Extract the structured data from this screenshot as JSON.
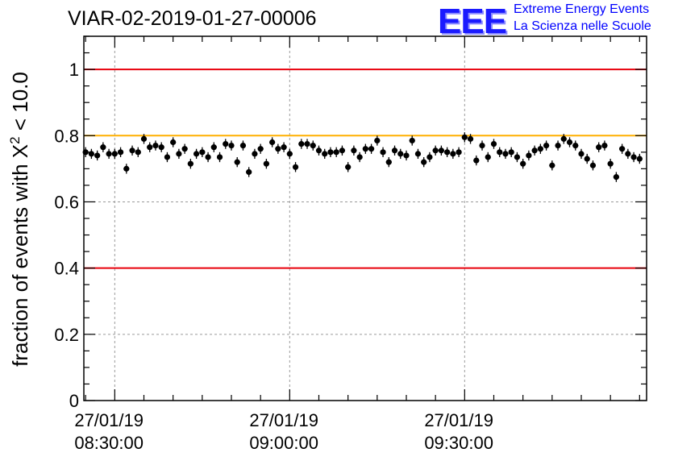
{
  "header": {
    "title": "VIAR-02-2019-01-27-00006",
    "logo_text": "EEE",
    "logo_line1": "Extreme Energy Events",
    "logo_line2": "La Scienza nelle Scuole"
  },
  "colors": {
    "red_line": "#e8000b",
    "orange_line": "#ffb000",
    "marker": "#000000",
    "grid": "#9a9a9a",
    "logo_blue": "#1a1aff"
  },
  "chart_data": {
    "type": "scatter",
    "title": "VIAR-02-2019-01-27-00006",
    "xlabel": "",
    "ylabel_prefix": "fraction of events with ",
    "ylabel_symbol": "X",
    "ylabel_superscript": "2",
    "ylabel_suffix": " < 10.0",
    "ylim": [
      0,
      1.1
    ],
    "yticks": [
      0,
      0.2,
      0.4,
      0.6,
      0.8,
      1
    ],
    "ytick_labels": [
      "0",
      "0.2",
      "0.4",
      "0.6",
      "0.8",
      "1"
    ],
    "xlim_minutes": [
      -5.3,
      91.2
    ],
    "xticks_minutes": [
      0,
      30,
      60
    ],
    "xtick_labels": [
      {
        "date": "27/01/19",
        "time": "08:30:00"
      },
      {
        "date": "27/01/19",
        "time": "09:00:00"
      },
      {
        "date": "27/01/19",
        "time": "09:30:00"
      }
    ],
    "reference_lines": [
      {
        "y": 1.0,
        "color": "red"
      },
      {
        "y": 0.8,
        "color": "orange"
      },
      {
        "y": 0.4,
        "color": "red"
      }
    ],
    "error_bar": 0.015,
    "grid": true,
    "x_minutes": [
      -5.0,
      -4.0,
      -3.0,
      -2.0,
      -1.0,
      0.0,
      1.0,
      2.0,
      3.0,
      4.0,
      5.0,
      6.0,
      7.0,
      8.0,
      9.0,
      10.0,
      11.0,
      12.0,
      13.0,
      14.0,
      15.0,
      16.0,
      17.0,
      18.0,
      19.0,
      20.0,
      21.0,
      22.0,
      23.0,
      24.0,
      25.0,
      26.0,
      27.0,
      28.0,
      29.0,
      30.0,
      31.0,
      32.0,
      33.0,
      34.0,
      35.0,
      36.0,
      37.0,
      38.0,
      39.0,
      40.0,
      41.0,
      42.0,
      43.0,
      44.0,
      45.0,
      46.0,
      47.0,
      48.0,
      49.0,
      50.0,
      51.0,
      52.0,
      53.0,
      54.0,
      55.0,
      56.0,
      57.0,
      58.0,
      59.0,
      60.0,
      61.0,
      62.0,
      63.0,
      64.0,
      65.0,
      66.0,
      67.0,
      68.0,
      69.0,
      70.0,
      71.0,
      72.0,
      73.0,
      74.0,
      75.0,
      76.0,
      77.0,
      78.0,
      79.0,
      80.0,
      81.0,
      82.0,
      83.0,
      84.0,
      85.0,
      86.0,
      87.0,
      88.0,
      89.0,
      90.0
    ],
    "y": [
      0.75,
      0.745,
      0.74,
      0.765,
      0.745,
      0.745,
      0.75,
      0.7,
      0.755,
      0.75,
      0.79,
      0.765,
      0.77,
      0.765,
      0.735,
      0.78,
      0.745,
      0.76,
      0.715,
      0.745,
      0.75,
      0.735,
      0.765,
      0.735,
      0.775,
      0.77,
      0.72,
      0.77,
      0.69,
      0.745,
      0.76,
      0.715,
      0.78,
      0.76,
      0.765,
      0.745,
      0.705,
      0.775,
      0.775,
      0.77,
      0.755,
      0.745,
      0.75,
      0.75,
      0.755,
      0.705,
      0.755,
      0.735,
      0.76,
      0.76,
      0.785,
      0.75,
      0.72,
      0.755,
      0.745,
      0.74,
      0.785,
      0.745,
      0.72,
      0.735,
      0.755,
      0.755,
      0.75,
      0.745,
      0.75,
      0.795,
      0.79,
      0.725,
      0.77,
      0.735,
      0.775,
      0.75,
      0.745,
      0.75,
      0.735,
      0.715,
      0.74,
      0.755,
      0.76,
      0.77,
      0.71,
      0.77,
      0.79,
      0.78,
      0.77,
      0.745,
      0.73,
      0.71,
      0.765,
      0.77,
      0.715,
      0.675,
      0.76,
      0.745,
      0.735,
      0.73
    ]
  }
}
